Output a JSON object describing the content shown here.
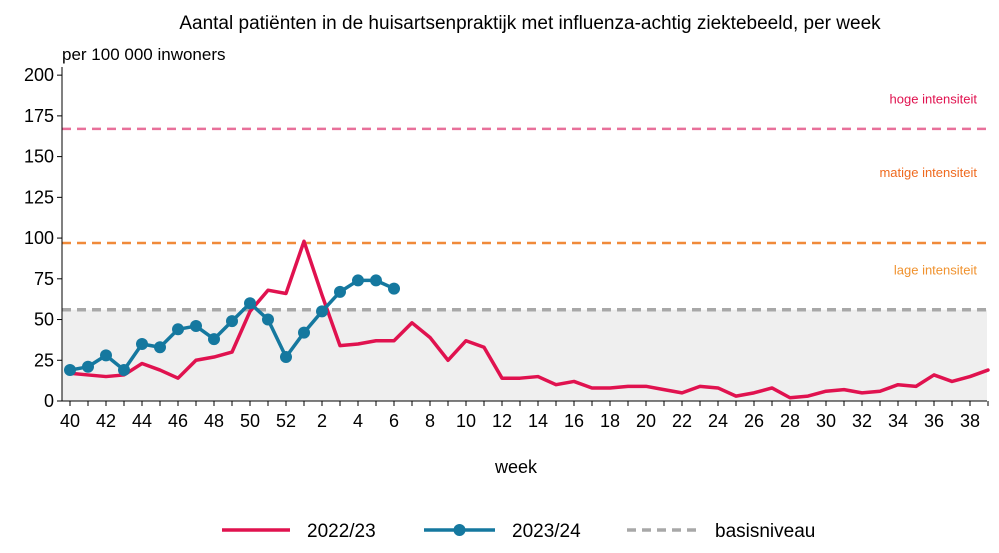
{
  "chart_data": {
    "type": "line",
    "title": "Aantal patiënten in de huisartsenpraktijk met influenza-achtig ziektebeeld, per week",
    "subtitle": "per 100 000 inwoners",
    "xlabel": "week",
    "ylabel": "",
    "ylim": [
      0,
      205
    ],
    "yticks": [
      0,
      25,
      50,
      75,
      100,
      125,
      150,
      175,
      200
    ],
    "weeks": [
      "40",
      "41",
      "42",
      "43",
      "44",
      "45",
      "46",
      "47",
      "48",
      "49",
      "50",
      "51",
      "52",
      "1",
      "2",
      "3",
      "4",
      "5",
      "6",
      "7",
      "8",
      "9",
      "10",
      "11",
      "12",
      "13",
      "14",
      "15",
      "16",
      "17",
      "18",
      "19",
      "20",
      "21",
      "22",
      "23",
      "24",
      "25",
      "26",
      "27",
      "28",
      "29",
      "30",
      "31",
      "32",
      "33",
      "34",
      "35",
      "36",
      "37",
      "38",
      "39"
    ],
    "xtick_labels": [
      "40",
      "42",
      "44",
      "46",
      "48",
      "50",
      "52",
      "2",
      "4",
      "6",
      "8",
      "10",
      "12",
      "14",
      "16",
      "18",
      "20",
      "22",
      "24",
      "26",
      "28",
      "30",
      "32",
      "34",
      "36",
      "38"
    ],
    "series": [
      {
        "name": "2022/23",
        "color": "#e0124f",
        "marker": false,
        "values": [
          17,
          16,
          15,
          16,
          23,
          19,
          14,
          25,
          27,
          30,
          55,
          68,
          66,
          98,
          65,
          34,
          35,
          37,
          37,
          48,
          39,
          25,
          37,
          33,
          14,
          14,
          15,
          10,
          12,
          8,
          8,
          9,
          9,
          7,
          5,
          9,
          8,
          3,
          5,
          8,
          2,
          3,
          6,
          7,
          5,
          6,
          10,
          9,
          16,
          12,
          15,
          19
        ]
      },
      {
        "name": "2023/24",
        "color": "#15789f",
        "marker": true,
        "values": [
          19,
          21,
          28,
          19,
          35,
          33,
          44,
          46,
          38,
          49,
          60,
          50,
          27,
          42,
          55,
          67,
          74,
          74,
          69
        ]
      },
      {
        "name": "basisniveau",
        "color": "#a8a8a8",
        "dashed": true,
        "constant": 56
      }
    ],
    "thresholds": [
      {
        "value": 97,
        "color": "#f08a3a",
        "dashed": true
      },
      {
        "value": 167,
        "color": "#e8709a",
        "dashed": true
      }
    ],
    "baseline_shade": {
      "value": 56,
      "color": "#efefef"
    },
    "zone_labels": [
      {
        "text": "hoge intensiteit",
        "color": "#e0124f"
      },
      {
        "text": "matige intensiteit",
        "color": "#ef6a1f"
      },
      {
        "text": "lage intensiteit",
        "color": "#f0922e"
      }
    ],
    "legend": {
      "placement": "bottom",
      "items": [
        "2022/23",
        "2023/24",
        "basisniveau"
      ]
    }
  }
}
